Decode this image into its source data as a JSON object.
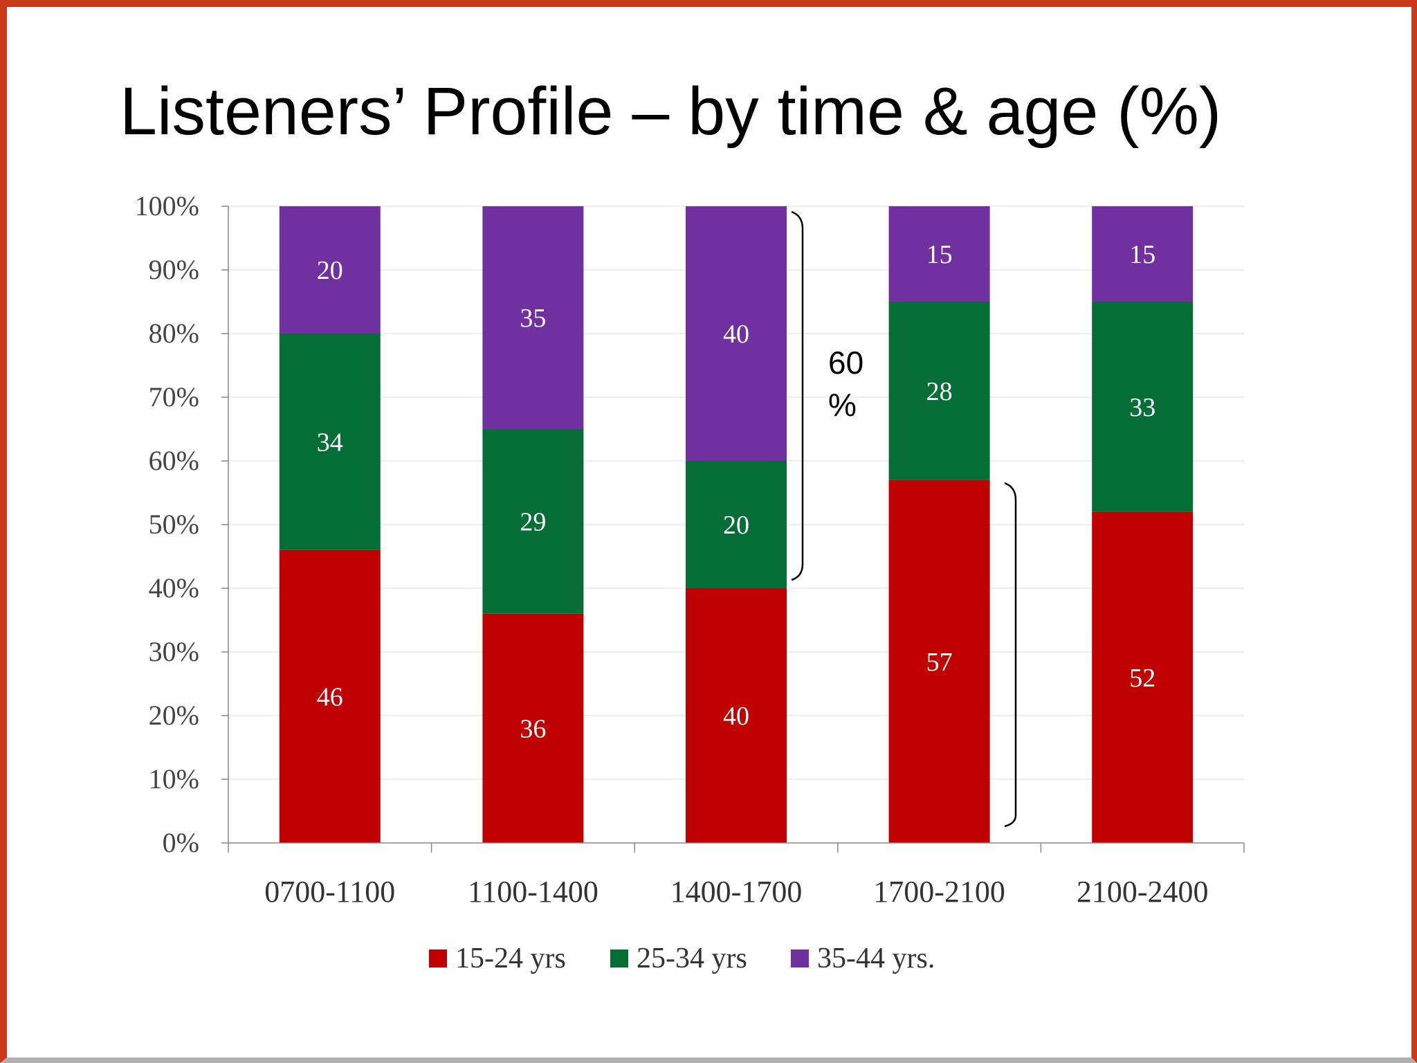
{
  "slide": {
    "title": "Listeners’ Profile – by time & age (%)"
  },
  "colors": {
    "border": "#c8391a",
    "series": [
      "#c00000",
      "#056e36",
      "#7030a0"
    ]
  },
  "chart_data": {
    "type": "bar",
    "stacked": true,
    "percent": true,
    "categories": [
      "0700-1100",
      "1100-1400",
      "1400-1700",
      "1700-2100",
      "2100-2400"
    ],
    "series": [
      {
        "name": "15-24 yrs",
        "values": [
          46,
          36,
          40,
          57,
          52
        ]
      },
      {
        "name": "25-34 yrs",
        "values": [
          34,
          29,
          20,
          28,
          33
        ]
      },
      {
        "name": "35-44 yrs.",
        "values": [
          20,
          35,
          40,
          15,
          15
        ]
      }
    ],
    "ytick_labels": [
      "0%",
      "10%",
      "20%",
      "30%",
      "40%",
      "50%",
      "60%",
      "70%",
      "80%",
      "90%",
      "100%"
    ],
    "ylim": [
      0,
      100
    ],
    "grid": true,
    "legend_position": "bottom",
    "data_labels": true,
    "annotations": [
      {
        "text_line1": "60",
        "text_line2": "%"
      }
    ]
  }
}
